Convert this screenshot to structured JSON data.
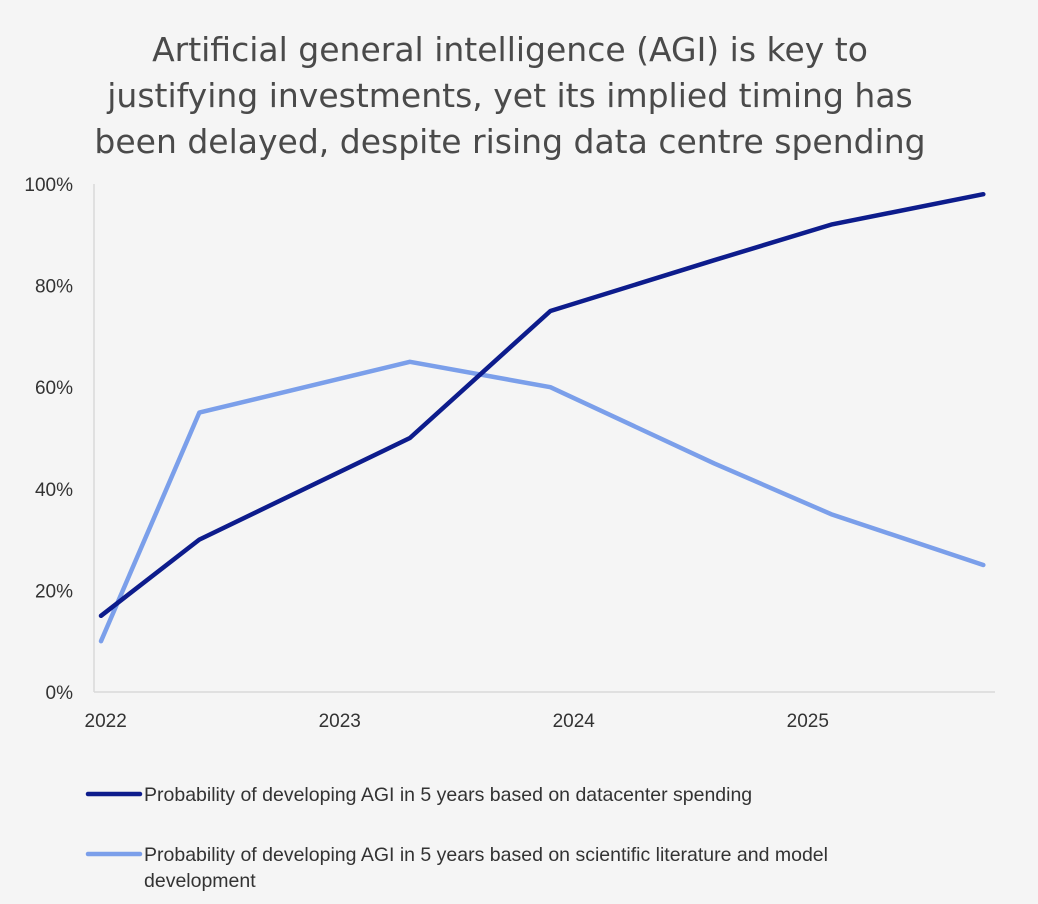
{
  "chart_data": {
    "type": "line",
    "title_lines": [
      "Artificial general intelligence (AGI) is key to",
      "justifying investments, yet its implied timing has",
      "been delayed, despite rising data centre spending"
    ],
    "xlabel": "",
    "ylabel": "",
    "x_ticks": [
      {
        "value": 2022.0,
        "label": "2022"
      },
      {
        "value": 2023.0,
        "label": "2023"
      },
      {
        "value": 2024.0,
        "label": "2024"
      },
      {
        "value": 2025.0,
        "label": "2025"
      }
    ],
    "xlim": [
      2021.95,
      2025.8
    ],
    "y_ticks": [
      {
        "value": 0,
        "label": "0%"
      },
      {
        "value": 20,
        "label": "20%"
      },
      {
        "value": 40,
        "label": "40%"
      },
      {
        "value": 60,
        "label": "60%"
      },
      {
        "value": 80,
        "label": "80%"
      },
      {
        "value": 100,
        "label": "100%"
      }
    ],
    "ylim": [
      0,
      100
    ],
    "grid": false,
    "legend_position": "bottom",
    "series": [
      {
        "name": "Probability of developing AGI in 5 years based on datacenter spending",
        "legend_lines": [
          "Probability of developing AGI in 5 years based on datacenter spending"
        ],
        "color": "#0d1c8c",
        "points": [
          {
            "x": 2021.98,
            "y": 15
          },
          {
            "x": 2022.4,
            "y": 30
          },
          {
            "x": 2023.3,
            "y": 50
          },
          {
            "x": 2023.9,
            "y": 75
          },
          {
            "x": 2024.6,
            "y": 85
          },
          {
            "x": 2025.1,
            "y": 92
          },
          {
            "x": 2025.75,
            "y": 98
          }
        ]
      },
      {
        "name": "Probability of developing AGI in 5 years based on scientific literature and model development",
        "legend_lines": [
          "Probability of developing AGI in 5 years based on scientific literature and model",
          "development"
        ],
        "color": "#7b9fea",
        "points": [
          {
            "x": 2021.98,
            "y": 10
          },
          {
            "x": 2022.4,
            "y": 55
          },
          {
            "x": 2023.3,
            "y": 65
          },
          {
            "x": 2023.9,
            "y": 60
          },
          {
            "x": 2024.6,
            "y": 45
          },
          {
            "x": 2025.1,
            "y": 35
          },
          {
            "x": 2025.75,
            "y": 25
          }
        ]
      }
    ]
  }
}
